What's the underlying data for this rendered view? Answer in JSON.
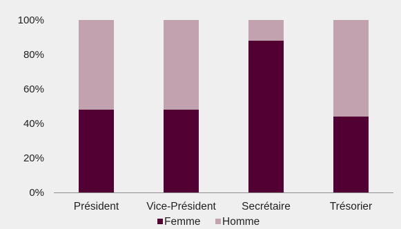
{
  "chart_data": {
    "type": "bar",
    "stacked": true,
    "categories": [
      "Président",
      "Vice-Président",
      "Secrétaire",
      "Trésorier"
    ],
    "series": [
      {
        "name": "Femme",
        "values": [
          48,
          48,
          88,
          44
        ],
        "color": "#520033"
      },
      {
        "name": "Homme",
        "values": [
          52,
          52,
          12,
          56
        ],
        "color": "#c2a2ae"
      }
    ],
    "yticks": [
      "0%",
      "20%",
      "40%",
      "60%",
      "80%",
      "100%"
    ],
    "ylim": [
      0,
      100
    ],
    "grid": false,
    "legend_position": "bottom",
    "background": "#efefef",
    "axis_color": "#8c8c8c"
  }
}
